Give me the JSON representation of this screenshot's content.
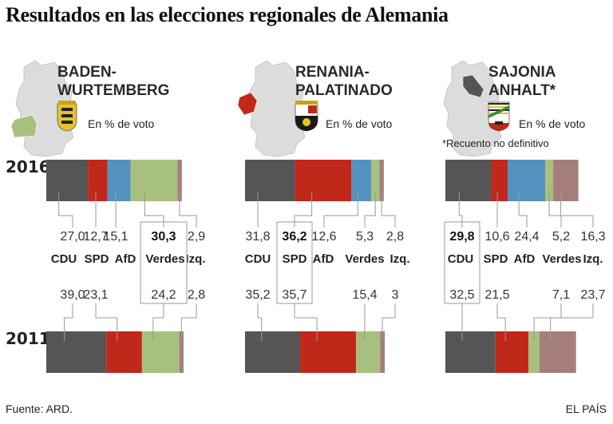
{
  "title": "Resultados en las elecciones regionales de Alemania",
  "footer": {
    "source": "Fuente: ARD.",
    "brand": "EL PAÍS"
  },
  "subtitle": "En % de voto",
  "note": "*Recuento no definitivo",
  "years": [
    "2016",
    "2011"
  ],
  "colors": {
    "CDU": "#555555",
    "SPD": "#c0281a",
    "AfD": "#5392bf",
    "Verdes": "#a8c07e",
    "Izq.": "#a57e7c"
  },
  "chart_data": [
    {
      "type": "bar",
      "stacked": true,
      "state": [
        "BADEN-",
        "WURTEMBERG"
      ],
      "categories": [
        "CDU",
        "SPD",
        "AfD",
        "Verdes",
        "Izq."
      ],
      "series": [
        {
          "name": "2016",
          "values": [
            27.0,
            12.7,
            15.1,
            30.3,
            2.9
          ],
          "labels": [
            "27,0",
            "12,7",
            "15,1",
            "30,3",
            "2,9"
          ]
        },
        {
          "name": "2011",
          "values": [
            39.0,
            23.1,
            0,
            24.2,
            2.8
          ],
          "labels": [
            "39,0",
            "23,1",
            "",
            "24,2",
            "2,8"
          ]
        }
      ],
      "winner": "Verdes",
      "unit": "% de voto"
    },
    {
      "type": "bar",
      "stacked": true,
      "state": [
        "RENANIA-",
        "PALATINADO"
      ],
      "categories": [
        "CDU",
        "SPD",
        "AfD",
        "Verdes",
        "Izq."
      ],
      "series": [
        {
          "name": "2016",
          "values": [
            31.8,
            36.2,
            12.6,
            5.3,
            2.8
          ],
          "labels": [
            "31,8",
            "36,2",
            "12,6",
            "5,3",
            "2,8"
          ]
        },
        {
          "name": "2011",
          "values": [
            35.2,
            35.7,
            0,
            15.4,
            3
          ],
          "labels": [
            "35,2",
            "35,7",
            "",
            "15,4",
            "3"
          ]
        }
      ],
      "winner": "SPD",
      "unit": "% de voto"
    },
    {
      "type": "bar",
      "stacked": true,
      "state": [
        "SAJONIA",
        "ANHALT*"
      ],
      "categories": [
        "CDU",
        "SPD",
        "AfD",
        "Verdes",
        "Izq."
      ],
      "series": [
        {
          "name": "2016",
          "values": [
            29.8,
            10.6,
            24.4,
            5.2,
            16.3
          ],
          "labels": [
            "29,8",
            "10,6",
            "24,4",
            "5,2",
            "16,3"
          ]
        },
        {
          "name": "2011",
          "values": [
            32.5,
            21.5,
            0,
            7.1,
            23.7
          ],
          "labels": [
            "32,5",
            "21,5",
            "",
            "7,1",
            "23,7"
          ]
        }
      ],
      "winner": "CDU",
      "unit": "% de voto"
    }
  ]
}
